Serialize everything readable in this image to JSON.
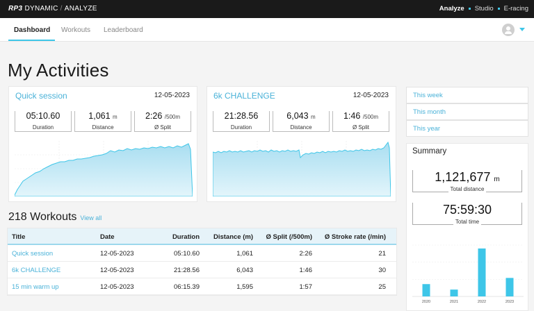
{
  "brand": {
    "logo": "RP3",
    "name": "DYNAMIC",
    "separator": "/",
    "section": "ANALYZE"
  },
  "topnav": [
    "Analyze",
    "Studio",
    "E-racing"
  ],
  "tabs": [
    "Dashboard",
    "Workouts",
    "Leaderboard"
  ],
  "page_title": "My Activities",
  "activities": [
    {
      "title": "Quick session",
      "date": "12-05-2023",
      "stats": [
        {
          "value": "05:10.60",
          "unit": "",
          "label": "Duration"
        },
        {
          "value": "1,061",
          "unit": "m",
          "label": "Distance"
        },
        {
          "value": "2:26",
          "unit": "/500m",
          "label": "Ø Split"
        }
      ]
    },
    {
      "title": "6k CHALLENGE",
      "date": "12-05-2023",
      "stats": [
        {
          "value": "21:28.56",
          "unit": "",
          "label": "Duration"
        },
        {
          "value": "6,043",
          "unit": "m",
          "label": "Distance"
        },
        {
          "value": "1:46",
          "unit": "/500m",
          "label": "Ø Split"
        }
      ]
    }
  ],
  "workouts": {
    "count_label": "218 Workouts",
    "view_all": "View all",
    "columns": [
      "Title",
      "Date",
      "Duration",
      "Distance (m)",
      "Ø Split (/500m)",
      "Ø Stroke rate (/min)"
    ],
    "rows": [
      [
        "Quick session",
        "12-05-2023",
        "05:10.60",
        "1,061",
        "2:26",
        "21"
      ],
      [
        "6k CHALLENGE",
        "12-05-2023",
        "21:28.56",
        "6,043",
        "1:46",
        "30"
      ],
      [
        "15 min warm up",
        "12-05-2023",
        "06:15.39",
        "1,595",
        "1:57",
        "25"
      ]
    ]
  },
  "periods": [
    "This week",
    "This month",
    "This year"
  ],
  "summary": {
    "title": "Summary",
    "total_distance": "1,121,677",
    "distance_unit": "m",
    "total_distance_label": "Total distance",
    "total_time": "75:59:30",
    "total_time_label": "Total time"
  },
  "chart_data": [
    {
      "type": "bar",
      "categories": [
        "2020",
        "2021",
        "2022",
        "2023"
      ],
      "values": [
        18,
        10,
        70,
        27
      ],
      "ylim": [
        0,
        75
      ],
      "color": "#3ec6e8"
    }
  ],
  "colors": {
    "accent": "#3ec6e8",
    "link": "#4ab2d8",
    "topbar": "#1a1a1a"
  }
}
